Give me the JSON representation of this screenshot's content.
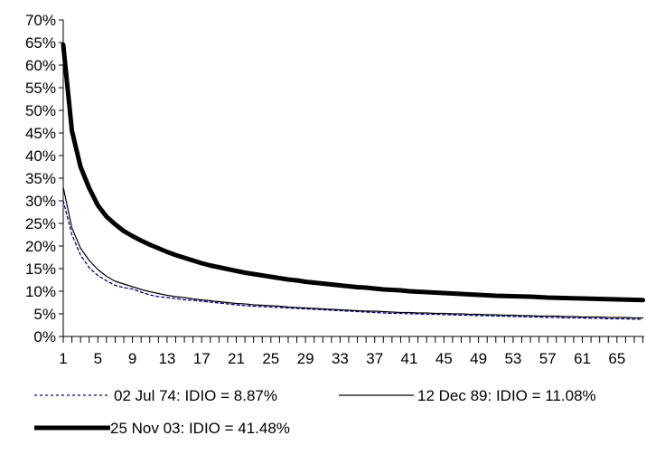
{
  "chart_data": {
    "type": "line",
    "title": "",
    "xlabel": "",
    "ylabel": "",
    "x_range": [
      1,
      68
    ],
    "x_tick_labels": [
      "1",
      "5",
      "9",
      "13",
      "17",
      "21",
      "25",
      "29",
      "33",
      "37",
      "41",
      "45",
      "49",
      "53",
      "57",
      "61",
      "65"
    ],
    "ylim": [
      0,
      70
    ],
    "y_tick_labels": [
      "0%",
      "5%",
      "10%",
      "15%",
      "20%",
      "25%",
      "30%",
      "35%",
      "40%",
      "45%",
      "50%",
      "55%",
      "60%",
      "65%",
      "70%"
    ],
    "grid": false,
    "legend_position": "bottom",
    "series": [
      {
        "name": "02 Jul 74: IDIO = 8.87%",
        "style": "dotted",
        "color": "#00008b",
        "values": [
          30.0,
          22.5,
          18.0,
          15.2,
          13.5,
          12.3,
          11.3,
          10.8,
          10.5,
          9.8,
          9.2,
          8.8,
          8.6,
          8.4,
          8.1,
          8.0,
          7.8,
          7.6,
          7.4,
          7.2,
          7.0,
          6.8,
          6.7,
          6.6,
          6.5,
          6.4,
          6.3,
          6.2,
          6.1,
          6.0,
          5.9,
          5.8,
          5.7,
          5.6,
          5.5,
          5.4,
          5.3,
          5.2,
          5.1,
          5.1,
          5.0,
          5.0,
          4.9,
          4.9,
          4.8,
          4.8,
          4.7,
          4.7,
          4.6,
          4.6,
          4.5,
          4.5,
          4.4,
          4.4,
          4.3,
          4.3,
          4.2,
          4.2,
          4.1,
          4.1,
          4.1,
          4.0,
          4.0,
          3.9,
          3.9,
          3.9,
          3.8,
          3.8
        ]
      },
      {
        "name": "12 Dec 89: IDIO = 11.08%",
        "style": "thin",
        "color": "#000000",
        "values": [
          33.0,
          24.0,
          19.5,
          16.8,
          14.8,
          13.3,
          12.2,
          11.6,
          11.0,
          10.4,
          9.9,
          9.5,
          9.1,
          8.8,
          8.6,
          8.3,
          8.1,
          7.9,
          7.7,
          7.5,
          7.3,
          7.2,
          7.0,
          6.9,
          6.8,
          6.7,
          6.5,
          6.4,
          6.3,
          6.2,
          6.1,
          6.0,
          5.9,
          5.8,
          5.7,
          5.6,
          5.6,
          5.5,
          5.4,
          5.3,
          5.3,
          5.2,
          5.2,
          5.1,
          5.1,
          5.0,
          5.0,
          4.9,
          4.9,
          4.8,
          4.8,
          4.7,
          4.7,
          4.6,
          4.6,
          4.5,
          4.5,
          4.5,
          4.4,
          4.4,
          4.3,
          4.3,
          4.3,
          4.2,
          4.2,
          4.2,
          4.1,
          4.1
        ]
      },
      {
        "name": "25 Nov 03: IDIO = 41.48%",
        "style": "thick",
        "color": "#000000",
        "values": [
          64.5,
          45.5,
          37.5,
          32.8,
          29.0,
          26.5,
          24.8,
          23.3,
          22.2,
          21.2,
          20.3,
          19.5,
          18.7,
          18.0,
          17.4,
          16.8,
          16.2,
          15.7,
          15.3,
          14.9,
          14.5,
          14.1,
          13.8,
          13.5,
          13.2,
          12.9,
          12.6,
          12.4,
          12.1,
          11.9,
          11.7,
          11.5,
          11.3,
          11.1,
          10.9,
          10.8,
          10.6,
          10.4,
          10.3,
          10.2,
          10.0,
          9.9,
          9.8,
          9.7,
          9.6,
          9.5,
          9.4,
          9.3,
          9.2,
          9.1,
          9.0,
          8.95,
          8.9,
          8.85,
          8.8,
          8.7,
          8.6,
          8.55,
          8.5,
          8.45,
          8.4,
          8.35,
          8.3,
          8.25,
          8.2,
          8.15,
          8.1,
          8.05
        ]
      }
    ]
  }
}
